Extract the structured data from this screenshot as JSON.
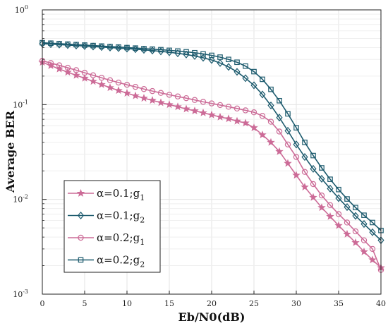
{
  "chart_data": {
    "type": "line",
    "title": "",
    "xlabel": "Eb/N0(dB)",
    "ylabel": "Average BER",
    "xlim": [
      0,
      40
    ],
    "ylim": [
      0.001,
      1
    ],
    "yscale": "log",
    "grid": true,
    "legend_position": "bottom-left",
    "x_ticks": [
      "0",
      "5",
      "10",
      "15",
      "20",
      "25",
      "30",
      "35",
      "40"
    ],
    "y_ticks": [
      {
        "value": 0.001,
        "base": "10",
        "exp": "-3"
      },
      {
        "value": 0.01,
        "base": "10",
        "exp": "-2"
      },
      {
        "value": 0.1,
        "base": "10",
        "exp": "-1"
      },
      {
        "value": 1,
        "base": "10",
        "exp": "0"
      }
    ],
    "x": [
      0,
      1,
      2,
      3,
      4,
      5,
      6,
      7,
      8,
      9,
      10,
      11,
      12,
      13,
      14,
      15,
      16,
      17,
      18,
      19,
      20,
      21,
      22,
      23,
      24,
      25,
      26,
      27,
      28,
      29,
      30,
      31,
      32,
      33,
      34,
      35,
      36,
      37,
      38,
      39,
      40
    ],
    "series": [
      {
        "name": "α=0.1;g1",
        "label_main": "α=0.1;g",
        "label_sub": "1",
        "color": "#cc6b97",
        "marker": "star",
        "values": [
          0.28,
          0.258,
          0.238,
          0.22,
          0.204,
          0.19,
          0.176,
          0.163,
          0.151,
          0.141,
          0.132,
          0.124,
          0.117,
          0.111,
          0.105,
          0.1,
          0.095,
          0.09,
          0.086,
          0.082,
          0.078,
          0.074,
          0.071,
          0.067,
          0.064,
          0.057,
          0.048,
          0.04,
          0.032,
          0.024,
          0.018,
          0.0135,
          0.0105,
          0.0082,
          0.0066,
          0.0053,
          0.0043,
          0.0035,
          0.0028,
          0.0023,
          0.0019
        ]
      },
      {
        "name": "α=0.1;g2",
        "label_main": "α=0.1;g",
        "label_sub": "2",
        "color": "#1d5b6e",
        "marker": "diamond",
        "values": [
          0.44,
          0.435,
          0.43,
          0.425,
          0.42,
          0.415,
          0.41,
          0.405,
          0.4,
          0.395,
          0.39,
          0.385,
          0.378,
          0.372,
          0.365,
          0.357,
          0.348,
          0.338,
          0.326,
          0.312,
          0.296,
          0.275,
          0.25,
          0.222,
          0.19,
          0.16,
          0.128,
          0.098,
          0.073,
          0.053,
          0.038,
          0.028,
          0.021,
          0.0165,
          0.013,
          0.0103,
          0.0083,
          0.0067,
          0.0055,
          0.0045,
          0.0037
        ]
      },
      {
        "name": "α=0.2;g1",
        "label_main": "α=0.2;g",
        "label_sub": "1",
        "color": "#cc6b97",
        "marker": "circle",
        "values": [
          0.29,
          0.275,
          0.26,
          0.245,
          0.231,
          0.217,
          0.204,
          0.192,
          0.181,
          0.171,
          0.162,
          0.154,
          0.146,
          0.139,
          0.133,
          0.127,
          0.122,
          0.117,
          0.112,
          0.107,
          0.103,
          0.099,
          0.095,
          0.091,
          0.087,
          0.083,
          0.076,
          0.066,
          0.052,
          0.038,
          0.028,
          0.0195,
          0.0145,
          0.011,
          0.0087,
          0.007,
          0.0057,
          0.0046,
          0.0037,
          0.003,
          0.0018
        ]
      },
      {
        "name": "α=0.2;g2",
        "label_main": "α=0.2;g",
        "label_sub": "2",
        "color": "#1d5b6e",
        "marker": "square",
        "values": [
          0.45,
          0.445,
          0.44,
          0.435,
          0.43,
          0.425,
          0.42,
          0.415,
          0.41,
          0.405,
          0.4,
          0.395,
          0.39,
          0.385,
          0.38,
          0.374,
          0.368,
          0.361,
          0.353,
          0.343,
          0.331,
          0.317,
          0.3,
          0.28,
          0.255,
          0.223,
          0.185,
          0.145,
          0.11,
          0.08,
          0.057,
          0.04,
          0.029,
          0.0215,
          0.0163,
          0.0127,
          0.0101,
          0.0082,
          0.0068,
          0.0057,
          0.0047
        ]
      }
    ]
  }
}
